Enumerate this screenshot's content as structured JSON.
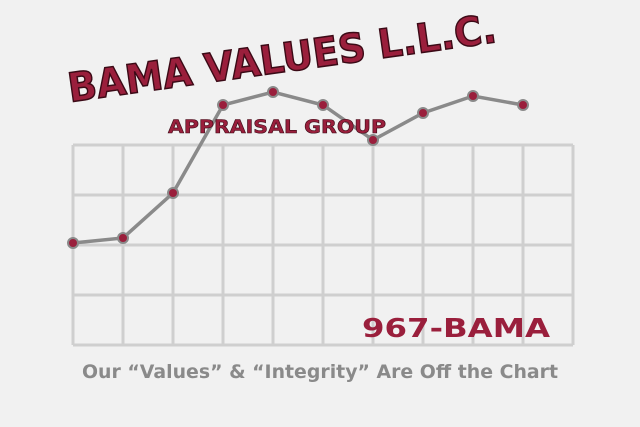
{
  "logo": {
    "title": "BAMA VALUES L.L.C.",
    "subtitle": "APPRAISAL GROUP",
    "phone": "967-BAMA",
    "tagline": "Our “Values” & “Integrity” Are Off the Chart"
  }
}
